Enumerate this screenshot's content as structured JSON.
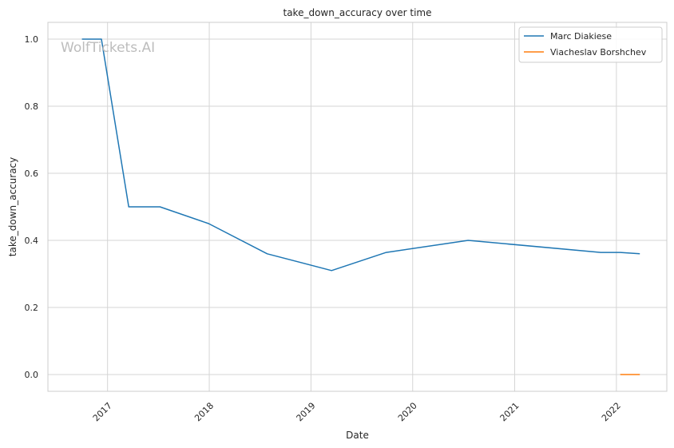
{
  "watermark": "WolfTickets.AI",
  "chart_data": {
    "type": "line",
    "title": "take_down_accuracy over time",
    "xlabel": "Date",
    "ylabel": "take_down_accuracy",
    "x_ticks": [
      "2017",
      "2018",
      "2019",
      "2020",
      "2021",
      "2022"
    ],
    "y_ticks": [
      "0.0",
      "0.2",
      "0.4",
      "0.6",
      "0.8",
      "1.0"
    ],
    "xlim": [
      "2016-06-01",
      "2022-07-01"
    ],
    "ylim": [
      -0.05,
      1.05
    ],
    "grid": true,
    "legend_position": "top-right",
    "series": [
      {
        "name": "Marc Diakiese",
        "color": "#1f77b4",
        "points": [
          {
            "x": "2016-10-01",
            "y": 1.0
          },
          {
            "x": "2016-12-10",
            "y": 1.0
          },
          {
            "x": "2017-03-18",
            "y": 0.5
          },
          {
            "x": "2017-07-08",
            "y": 0.5
          },
          {
            "x": "2017-12-30",
            "y": 0.45
          },
          {
            "x": "2018-07-28",
            "y": 0.36
          },
          {
            "x": "2019-03-16",
            "y": 0.31
          },
          {
            "x": "2019-09-28",
            "y": 0.364
          },
          {
            "x": "2020-07-18",
            "y": 0.4
          },
          {
            "x": "2021-11-06",
            "y": 0.364
          },
          {
            "x": "2022-01-15",
            "y": 0.364
          },
          {
            "x": "2022-03-26",
            "y": 0.36
          }
        ]
      },
      {
        "name": "Viacheslav Borshchev",
        "color": "#ff7f0e",
        "points": [
          {
            "x": "2022-01-15",
            "y": 0.0
          },
          {
            "x": "2022-03-26",
            "y": 0.0
          }
        ]
      }
    ]
  }
}
